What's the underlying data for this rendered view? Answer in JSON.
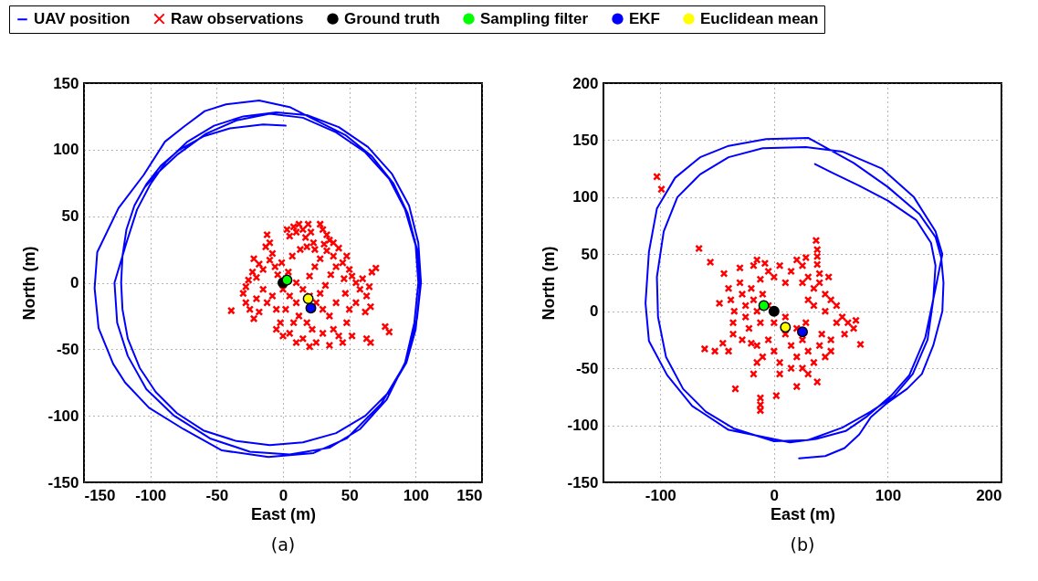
{
  "chart_data": [
    {
      "type": "scatter",
      "title": "(a)",
      "xlabel": "East (m)",
      "ylabel": "North (m)",
      "xlim": [
        -150,
        150
      ],
      "ylim": [
        -150,
        150
      ],
      "xticks": [
        -150,
        -100,
        -50,
        0,
        50,
        100,
        150
      ],
      "yticks": [
        -150,
        -100,
        -50,
        0,
        50,
        100,
        150
      ],
      "grid": true,
      "legend": "top",
      "series": [
        {
          "name": "UAV position",
          "type": "line",
          "color": "#0000ff",
          "x": [
            2,
            -15,
            -40,
            -60,
            -78,
            -92,
            -103,
            -112,
            -118,
            -121,
            -122,
            -121,
            -117,
            -108,
            -96,
            -80,
            -60,
            -35,
            -10,
            15,
            40,
            62,
            80,
            93,
            100,
            103,
            101,
            94,
            83,
            67,
            47,
            25,
            5,
            -18,
            -43,
            -59,
            -75,
            -89,
            -105,
            -124,
            -140,
            -142,
            -139,
            -128,
            -119,
            -101,
            -75,
            -46,
            -11,
            23,
            48,
            74,
            92,
            101,
            104,
            102,
            95,
            82,
            64,
            42,
            18,
            -5,
            -30,
            -52,
            -72,
            -88,
            -100,
            -110,
            -118,
            -127,
            -125,
            -117,
            -103,
            -82,
            -55,
            -25,
            5,
            35,
            58,
            78,
            92,
            99,
            102,
            100,
            92,
            80,
            62,
            40,
            15,
            -10,
            -35,
            -58,
            -80,
            -95,
            -104
          ],
          "values": [
            118,
            119,
            116,
            110,
            100,
            88,
            74,
            58,
            40,
            20,
            0,
            -20,
            -42,
            -64,
            -82,
            -98,
            -111,
            -119,
            -122,
            -120,
            -113,
            -100,
            -82,
            -60,
            -35,
            -5,
            25,
            52,
            75,
            95,
            111,
            122,
            132,
            137,
            134,
            129,
            117,
            106,
            81,
            56,
            23,
            -4,
            -34,
            -61,
            -75,
            -94,
            -110,
            -126,
            -131,
            -128,
            -117,
            -91,
            -61,
            -27,
            0,
            30,
            58,
            82,
            102,
            117,
            126,
            128,
            125,
            118,
            106,
            91,
            74,
            55,
            30,
            0,
            -30,
            -55,
            -80,
            -100,
            -117,
            -127,
            -129,
            -124,
            -110,
            -88,
            -60,
            -30,
            0,
            28,
            55,
            78,
            98,
            113,
            124,
            127,
            122,
            112,
            96,
            82,
            72
          ]
        },
        {
          "name": "Raw observations",
          "color": "#ff0000",
          "marker": "cross",
          "x": [
            3,
            5,
            8,
            10,
            12,
            15,
            17,
            19,
            21,
            23,
            24,
            18,
            28,
            30,
            33,
            35,
            38,
            31,
            -12,
            -10,
            -13,
            -8,
            -22,
            -18,
            -23,
            -15,
            -10,
            -6,
            -4,
            -20,
            -26,
            -28,
            -30,
            -28,
            -25,
            -20,
            -18,
            -15,
            -12,
            -8,
            -5,
            -39,
            -22,
            33,
            38,
            42,
            45,
            48,
            50,
            40,
            36,
            46,
            52,
            55,
            58,
            60,
            63,
            65,
            66,
            62,
            55,
            50,
            47,
            67,
            70,
            77,
            80,
            63,
            66,
            0,
            5,
            10,
            15,
            20,
            25,
            30,
            35,
            28,
            12,
            18,
            22,
            8,
            2,
            -2,
            5,
            15,
            25,
            30,
            38,
            42,
            48,
            52,
            45,
            35,
            20,
            10,
            0,
            -5,
            40,
            32,
            10,
            4,
            -1,
            7,
            13,
            24,
            20,
            28
          ],
          "values": [
            40,
            35,
            42,
            38,
            44,
            40,
            34,
            44,
            38,
            30,
            25,
            27,
            44,
            40,
            36,
            32,
            30,
            29,
            36,
            30,
            27,
            22,
            18,
            14,
            8,
            10,
            17,
            12,
            6,
            4,
            2,
            -3,
            -8,
            -15,
            -20,
            -12,
            -22,
            -5,
            -15,
            -10,
            -20,
            -21,
            -27,
            24,
            20,
            26,
            15,
            20,
            10,
            12,
            6,
            3,
            5,
            0,
            -5,
            3,
            -10,
            -3,
            -18,
            -22,
            -15,
            -20,
            -8,
            8,
            11,
            -33,
            -37,
            -42,
            -45,
            -5,
            -10,
            -15,
            -5,
            -10,
            -15,
            -20,
            -25,
            -8,
            -25,
            -30,
            -35,
            -30,
            -20,
            -30,
            -38,
            -42,
            -45,
            -38,
            -35,
            -40,
            -30,
            -40,
            -45,
            -47,
            -48,
            -45,
            -40,
            -35,
            -15,
            -2,
            0,
            8,
            15,
            20,
            25,
            12,
            5,
            18
          ]
        },
        {
          "name": "Ground truth",
          "color": "#000000",
          "marker": "circle",
          "x": [
            0
          ],
          "values": [
            0
          ]
        },
        {
          "name": "Sampling filter",
          "color": "#00ff00",
          "marker": "circle",
          "x": [
            3
          ],
          "values": [
            2
          ]
        },
        {
          "name": "EKF",
          "color": "#0000ff",
          "marker": "circle",
          "x": [
            21
          ],
          "values": [
            -19
          ]
        },
        {
          "name": "Euclidean mean",
          "color": "#ffff00",
          "marker": "circle",
          "x": [
            19
          ],
          "values": [
            -12
          ]
        }
      ]
    },
    {
      "type": "scatter",
      "title": "(b)",
      "xlabel": "East (m)",
      "ylabel": "North (m)",
      "xlim": [
        -150,
        200
      ],
      "ylim": [
        -150,
        200
      ],
      "xticks": [
        -100,
        0,
        100,
        200
      ],
      "yticks": [
        -150,
        -100,
        -50,
        0,
        50,
        100,
        150,
        200
      ],
      "grid": true,
      "series": [
        {
          "type": "line",
          "color": "#0000ff",
          "x": [
            22,
            45,
            62,
            75,
            85,
            100,
            117,
            130,
            140,
            148,
            149,
            147,
            142,
            128,
            100,
            70,
            30,
            -7,
            -40,
            -65,
            -87,
            -103,
            -110,
            -113,
            -110,
            -94,
            -72,
            -40,
            14,
            37,
            63,
            82,
            103,
            119,
            133,
            142,
            148,
            142,
            123,
            95,
            60,
            28,
            -10,
            -40,
            -65,
            -85,
            -97,
            -103,
            -102,
            -95,
            -80,
            -60,
            -35,
            0,
            30,
            60,
            85,
            105,
            122,
            135,
            140,
            142,
            138,
            125,
            100,
            75,
            50,
            36
          ],
          "values": [
            -129,
            -127,
            -120,
            -108,
            -93,
            -80,
            -68,
            -55,
            -30,
            0,
            25,
            47,
            65,
            85,
            109,
            130,
            152,
            151,
            145,
            135,
            117,
            90,
            52,
            7,
            -26,
            -56,
            -83,
            -104,
            -115,
            -112,
            -105,
            -92,
            -74,
            -56,
            -23,
            20,
            50,
            70,
            100,
            125,
            140,
            144,
            143,
            135,
            120,
            100,
            70,
            30,
            -5,
            -40,
            -68,
            -88,
            -103,
            -114,
            -113,
            -102,
            -88,
            -75,
            -55,
            -25,
            10,
            40,
            60,
            80,
            97,
            110,
            122,
            129
          ]
        },
        {
          "color": "#ff0000",
          "marker": "cross",
          "x": [
            -103,
            -99,
            -66,
            -56,
            -44,
            -30,
            37,
            38,
            38,
            38,
            -48,
            -61,
            -52,
            -34,
            -12,
            -12,
            -12,
            2,
            20,
            38,
            76,
            72,
            -40,
            -38,
            -35,
            -36,
            -36,
            -30,
            -28,
            -25,
            -25,
            -22,
            -20,
            -18,
            -15,
            -12,
            -10,
            -5,
            -28,
            -20,
            -45,
            -40,
            -18,
            -15,
            -8,
            -5,
            0,
            5,
            10,
            15,
            20,
            25,
            28,
            -12,
            25,
            30,
            35,
            40,
            45,
            50,
            55,
            45,
            60,
            65,
            70,
            62,
            55,
            50,
            42,
            35,
            30,
            48,
            40,
            -15,
            -10,
            -5,
            0,
            5,
            10,
            15,
            20,
            25,
            30,
            35,
            40,
            45,
            50,
            15,
            25,
            -15,
            -18,
            5,
            30,
            20,
            10,
            0,
            28
          ],
          "values": [
            118,
            107,
            55,
            43,
            33,
            38,
            62,
            54,
            48,
            41,
            7,
            -33,
            -35,
            -68,
            -76,
            -82,
            -87,
            -74,
            -66,
            -62,
            -29,
            -8,
            20,
            10,
            0,
            -10,
            -20,
            25,
            15,
            5,
            -5,
            -15,
            20,
            10,
            0,
            -10,
            15,
            5,
            -25,
            -28,
            -28,
            -35,
            40,
            45,
            42,
            35,
            30,
            40,
            25,
            35,
            45,
            40,
            47,
            28,
            25,
            30,
            20,
            25,
            15,
            10,
            5,
            0,
            -5,
            -10,
            -15,
            -20,
            -10,
            -25,
            -20,
            5,
            10,
            30,
            33,
            -30,
            -40,
            -25,
            -35,
            -45,
            -20,
            -30,
            -40,
            -25,
            -35,
            -45,
            -30,
            -40,
            -35,
            -50,
            -50,
            -45,
            -55,
            -55,
            -55,
            -15,
            -5,
            -10,
            -10
          ]
        },
        {
          "color": "#000000",
          "marker": "circle",
          "x": [
            0
          ],
          "values": [
            0
          ]
        },
        {
          "color": "#00ff00",
          "marker": "circle",
          "x": [
            -9
          ],
          "values": [
            5
          ]
        },
        {
          "color": "#0000ff",
          "marker": "circle",
          "x": [
            25
          ],
          "values": [
            -18
          ]
        },
        {
          "color": "#ffff00",
          "marker": "circle",
          "x": [
            10
          ],
          "values": [
            -14
          ]
        }
      ]
    }
  ]
}
